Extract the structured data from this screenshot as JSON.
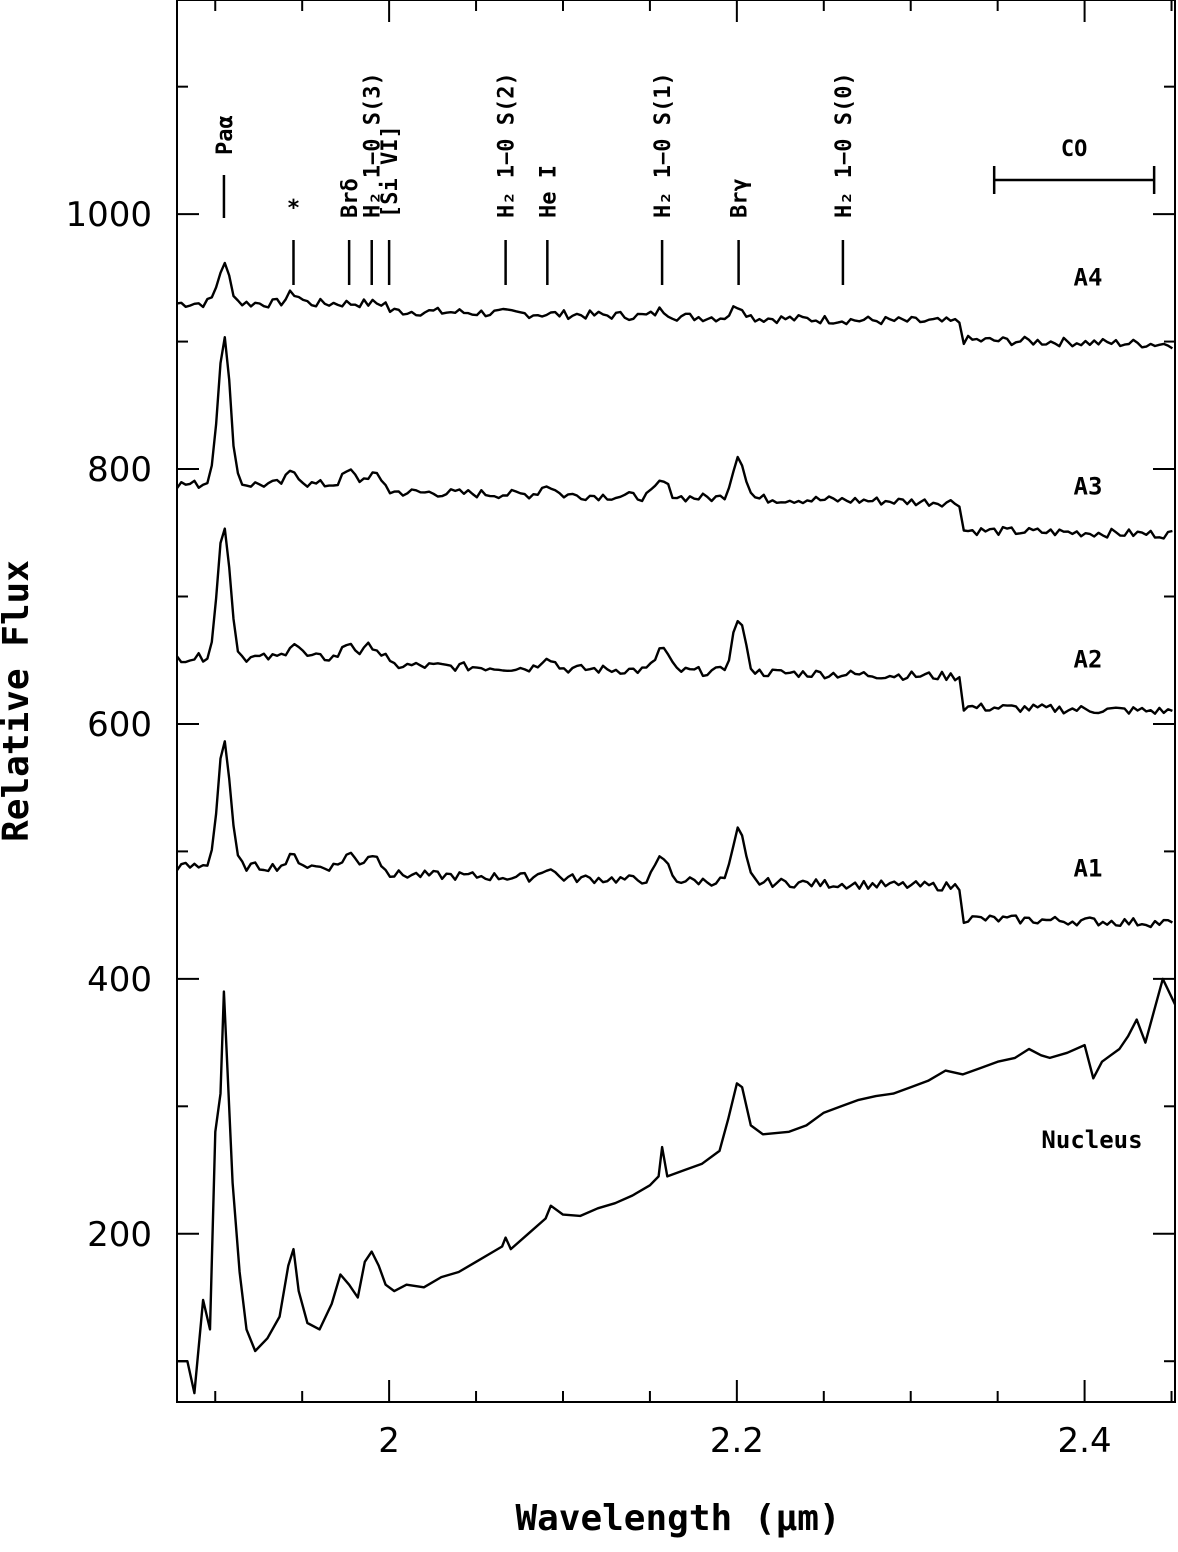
{
  "chart_data": {
    "type": "line",
    "title": "",
    "xlabel": "Wavelength (μm)",
    "ylabel": "Relative Flux",
    "xlim": [
      1.878,
      2.452
    ],
    "ylim": [
      68,
      1168
    ],
    "xticks": [
      2.0,
      2.2,
      2.4
    ],
    "xtick_labels": [
      "2",
      "2.2",
      "2.4"
    ],
    "yticks": [
      200,
      400,
      600,
      800,
      1000
    ],
    "ytick_labels": [
      "200",
      "400",
      "600",
      "800",
      "1000"
    ],
    "grid": false,
    "lines": [
      {
        "label": "Paα",
        "x": 1.905,
        "marker": "|"
      },
      {
        "label": "*",
        "x": 1.945,
        "marker": "|"
      },
      {
        "label": "Brδ",
        "x": 1.977,
        "marker": "|"
      },
      {
        "label": "H₂ 1−0 S(3)",
        "x": 1.99,
        "marker": "|"
      },
      {
        "label": "[Si VI]",
        "x": 2.0,
        "marker": "|"
      },
      {
        "label": "H₂ 1−0 S(2)",
        "x": 2.067,
        "marker": "|"
      },
      {
        "label": "He I",
        "x": 2.091,
        "marker": "|"
      },
      {
        "label": "H₂ 1−0 S(1)",
        "x": 2.157,
        "marker": "|"
      },
      {
        "label": "Brγ",
        "x": 2.201,
        "marker": "|"
      },
      {
        "label": "H₂ 1−0 S(0)",
        "x": 2.261,
        "marker": "|"
      }
    ],
    "co_band": {
      "label": "CO",
      "x_start": 2.348,
      "x_end": 2.44
    },
    "series": [
      {
        "name": "A4",
        "base": 930,
        "end": 900,
        "peaks": [
          [
            1.905,
            30
          ],
          [
            1.945,
            8
          ],
          [
            2.201,
            10
          ],
          [
            2.157,
            5
          ]
        ],
        "co_depth": 14
      },
      {
        "name": "A3",
        "base": 788,
        "end": 760,
        "peaks": [
          [
            1.905,
            115
          ],
          [
            1.945,
            10
          ],
          [
            1.977,
            10
          ],
          [
            1.99,
            8
          ],
          [
            2.091,
            8
          ],
          [
            2.157,
            12
          ],
          [
            2.201,
            34
          ]
        ],
        "co_depth": 22
      },
      {
        "name": "A2",
        "base": 652,
        "end": 622,
        "peaks": [
          [
            1.905,
            105
          ],
          [
            1.945,
            12
          ],
          [
            1.977,
            12
          ],
          [
            1.99,
            10
          ],
          [
            2.091,
            10
          ],
          [
            2.157,
            18
          ],
          [
            2.201,
            42
          ]
        ],
        "co_depth": 24
      },
      {
        "name": "A1",
        "base": 488,
        "end": 455,
        "peaks": [
          [
            1.905,
            100
          ],
          [
            1.945,
            8
          ],
          [
            1.977,
            10
          ],
          [
            1.99,
            10
          ],
          [
            2.091,
            8
          ],
          [
            2.157,
            18
          ],
          [
            2.201,
            40
          ]
        ],
        "co_depth": 25
      },
      {
        "name": "Nucleus",
        "points": [
          [
            1.878,
            100
          ],
          [
            1.884,
            100
          ],
          [
            1.888,
            75
          ],
          [
            1.893,
            148
          ],
          [
            1.897,
            125
          ],
          [
            1.9,
            280
          ],
          [
            1.903,
            310
          ],
          [
            1.905,
            390
          ],
          [
            1.907,
            330
          ],
          [
            1.91,
            240
          ],
          [
            1.914,
            170
          ],
          [
            1.918,
            125
          ],
          [
            1.923,
            108
          ],
          [
            1.93,
            118
          ],
          [
            1.937,
            135
          ],
          [
            1.942,
            175
          ],
          [
            1.945,
            188
          ],
          [
            1.948,
            155
          ],
          [
            1.953,
            130
          ],
          [
            1.96,
            125
          ],
          [
            1.967,
            145
          ],
          [
            1.972,
            168
          ],
          [
            1.977,
            160
          ],
          [
            1.982,
            150
          ],
          [
            1.986,
            178
          ],
          [
            1.99,
            186
          ],
          [
            1.994,
            175
          ],
          [
            1.998,
            160
          ],
          [
            2.003,
            155
          ],
          [
            2.01,
            160
          ],
          [
            2.02,
            158
          ],
          [
            2.03,
            166
          ],
          [
            2.04,
            170
          ],
          [
            2.05,
            178
          ],
          [
            2.06,
            186
          ],
          [
            2.065,
            190
          ],
          [
            2.067,
            197
          ],
          [
            2.07,
            188
          ],
          [
            2.08,
            200
          ],
          [
            2.09,
            212
          ],
          [
            2.093,
            222
          ],
          [
            2.1,
            215
          ],
          [
            2.11,
            214
          ],
          [
            2.12,
            220
          ],
          [
            2.13,
            224
          ],
          [
            2.14,
            230
          ],
          [
            2.15,
            238
          ],
          [
            2.155,
            245
          ],
          [
            2.157,
            268
          ],
          [
            2.16,
            245
          ],
          [
            2.17,
            250
          ],
          [
            2.18,
            255
          ],
          [
            2.19,
            265
          ],
          [
            2.195,
            290
          ],
          [
            2.2,
            318
          ],
          [
            2.203,
            315
          ],
          [
            2.208,
            285
          ],
          [
            2.215,
            278
          ],
          [
            2.23,
            280
          ],
          [
            2.24,
            285
          ],
          [
            2.25,
            295
          ],
          [
            2.26,
            300
          ],
          [
            2.27,
            305
          ],
          [
            2.28,
            308
          ],
          [
            2.29,
            310
          ],
          [
            2.3,
            315
          ],
          [
            2.31,
            320
          ],
          [
            2.32,
            328
          ],
          [
            2.33,
            325
          ],
          [
            2.34,
            330
          ],
          [
            2.35,
            335
          ],
          [
            2.36,
            338
          ],
          [
            2.368,
            345
          ],
          [
            2.375,
            340
          ],
          [
            2.38,
            338
          ],
          [
            2.39,
            342
          ],
          [
            2.4,
            348
          ],
          [
            2.405,
            322
          ],
          [
            2.41,
            335
          ],
          [
            2.415,
            340
          ],
          [
            2.42,
            345
          ],
          [
            2.425,
            355
          ],
          [
            2.43,
            368
          ],
          [
            2.435,
            350
          ],
          [
            2.44,
            375
          ],
          [
            2.445,
            400
          ],
          [
            2.452,
            380
          ]
        ]
      }
    ]
  }
}
